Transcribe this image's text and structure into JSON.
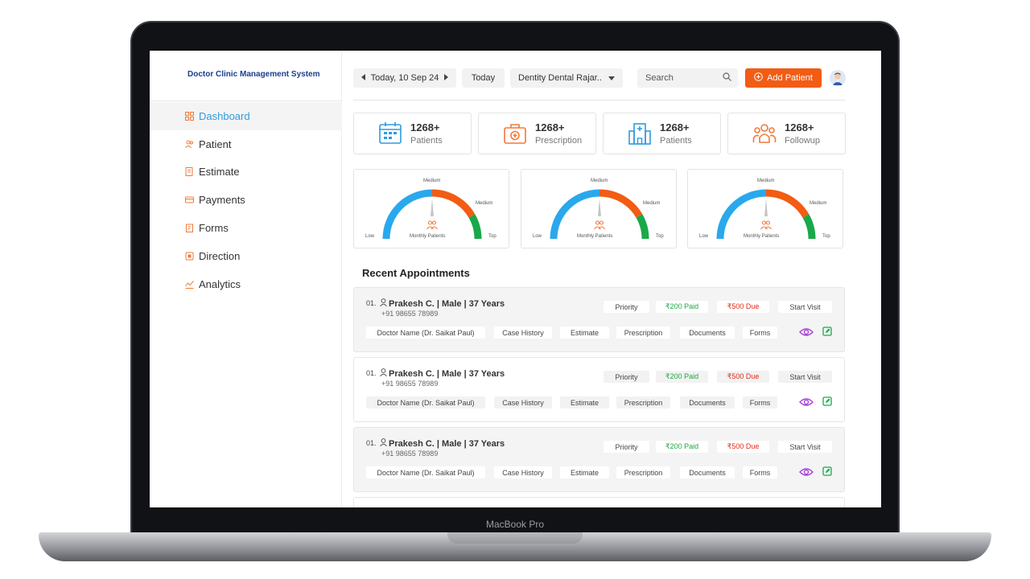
{
  "device": {
    "label": "MacBook Pro"
  },
  "app": {
    "title": "Doctor Clinic Management System"
  },
  "sidebar": {
    "items": [
      {
        "label": "Dashboard",
        "icon": "dashboard-icon",
        "active": true
      },
      {
        "label": "Patient",
        "icon": "patient-icon",
        "active": false
      },
      {
        "label": "Estimate",
        "icon": "estimate-icon",
        "active": false
      },
      {
        "label": "Payments",
        "icon": "payments-icon",
        "active": false
      },
      {
        "label": "Forms",
        "icon": "forms-icon",
        "active": false
      },
      {
        "label": "Direction",
        "icon": "direction-icon",
        "active": false
      },
      {
        "label": "Analytics",
        "icon": "analytics-icon",
        "active": false
      }
    ]
  },
  "topbar": {
    "date": "Today, 10 Sep 24",
    "today_label": "Today",
    "clinic": "Dentity Dental Rajar..",
    "search_placeholder": "Search",
    "add_patient_label": "Add Patient"
  },
  "stats": [
    {
      "value": "1268+",
      "label": "Patients",
      "icon": "calendar-icon",
      "color": "#2f9be0"
    },
    {
      "value": "1268+",
      "label": "Prescription",
      "icon": "medical-kit-icon",
      "color": "#f07a3a"
    },
    {
      "value": "1268+",
      "label": "Patients",
      "icon": "hospital-icon",
      "color": "#2f9be0"
    },
    {
      "value": "1268+",
      "label": "Followup",
      "icon": "group-icon",
      "color": "#f07a3a"
    }
  ],
  "gauges": [
    {
      "low": "Low",
      "medium_top": "Medium",
      "medium_right": "Medium",
      "top": "Top",
      "caption": "Monthly Patients"
    },
    {
      "low": "Low",
      "medium_top": "Medium",
      "medium_right": "Medium",
      "top": "Top",
      "caption": "Monthly Patients"
    },
    {
      "low": "Low",
      "medium_top": "Medium",
      "medium_right": "Medium",
      "top": "Top",
      "caption": "Monthly Patients"
    }
  ],
  "colors": {
    "gauge_blue": "#2aa8ec",
    "gauge_orange": "#f25c14",
    "gauge_green": "#1aa84a",
    "accent": "#f25c14"
  },
  "appointments_title": "Recent Appointments",
  "appointments": [
    {
      "num": "01.",
      "name": "Prakesh C. | Male | 37 Years",
      "phone": "+91 98655 78989",
      "priority": "Priority",
      "paid": "₹200 Paid",
      "due": "₹500 Due",
      "start": "Start Visit",
      "doctor": "Doctor Name (Dr. Saikat Paul)",
      "case_history": "Case History",
      "estimate": "Estimate",
      "prescription": "Prescription",
      "documents": "Documents",
      "forms": "Forms"
    },
    {
      "num": "01.",
      "name": "Prakesh C. | Male | 37 Years",
      "phone": "+91 98655 78989",
      "priority": "Priority",
      "paid": "₹200 Paid",
      "due": "₹500 Due",
      "start": "Start Visit",
      "doctor": "Doctor Name (Dr. Saikat Paul)",
      "case_history": "Case History",
      "estimate": "Estimate",
      "prescription": "Prescription",
      "documents": "Documents",
      "forms": "Forms"
    },
    {
      "num": "01.",
      "name": "Prakesh C. | Male | 37 Years",
      "phone": "+91 98655 78989",
      "priority": "Priority",
      "paid": "₹200 Paid",
      "due": "₹500 Due",
      "start": "Start Visit",
      "doctor": "Doctor Name (Dr. Saikat Paul)",
      "case_history": "Case History",
      "estimate": "Estimate",
      "prescription": "Prescription",
      "documents": "Documents",
      "forms": "Forms"
    }
  ]
}
